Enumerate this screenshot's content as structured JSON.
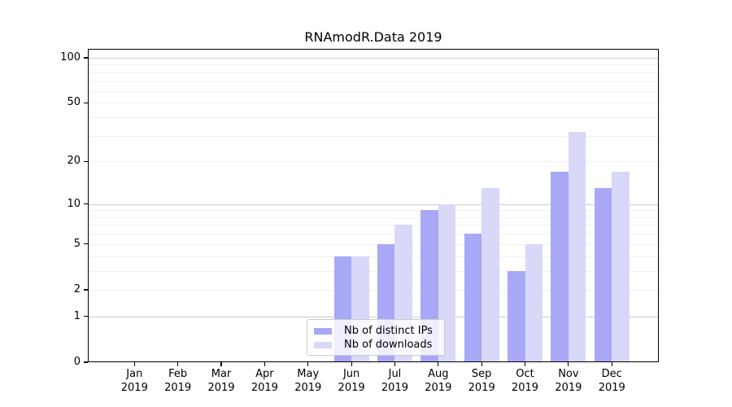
{
  "chart_data": {
    "type": "bar",
    "title": "RNAmodR.Data 2019",
    "categories": [
      "Jan",
      "Feb",
      "Mar",
      "Apr",
      "May",
      "Jun",
      "Jul",
      "Aug",
      "Sep",
      "Oct",
      "Nov",
      "Dec"
    ],
    "year_label": "2019",
    "series": [
      {
        "name": "Nb of distinct IPs",
        "color": "#a8a8f7",
        "values": [
          0,
          0,
          0,
          0,
          0,
          4,
          5,
          9,
          6,
          3,
          17,
          13
        ]
      },
      {
        "name": "Nb of downloads",
        "color": "#d8d8f8",
        "values": [
          0,
          0,
          0,
          0,
          0,
          4,
          7,
          10,
          13,
          5,
          32,
          17
        ]
      }
    ],
    "xlabel": "",
    "ylabel": "",
    "yscale": "log1p",
    "ylim": [
      0,
      115
    ],
    "yticks": [
      "0",
      "1",
      "2",
      "5",
      "10",
      "20",
      "50",
      "100"
    ],
    "ytick_values": [
      0,
      1,
      2,
      5,
      10,
      20,
      50,
      100
    ],
    "major_gridlines": [
      1,
      10,
      100
    ],
    "minor_gridlines": [
      2,
      3,
      4,
      5,
      6,
      7,
      8,
      9,
      20,
      30,
      40,
      50,
      60,
      70,
      80,
      90
    ],
    "grid": "on",
    "legend_position": "lower-center-inside"
  },
  "colors": {
    "background": "#ffffff",
    "axis": "#000000",
    "major_grid": "#cccccc",
    "minor_grid": "#f0f0f0",
    "series_ips": "#a8a8f7",
    "series_downloads": "#d8d8f8"
  }
}
